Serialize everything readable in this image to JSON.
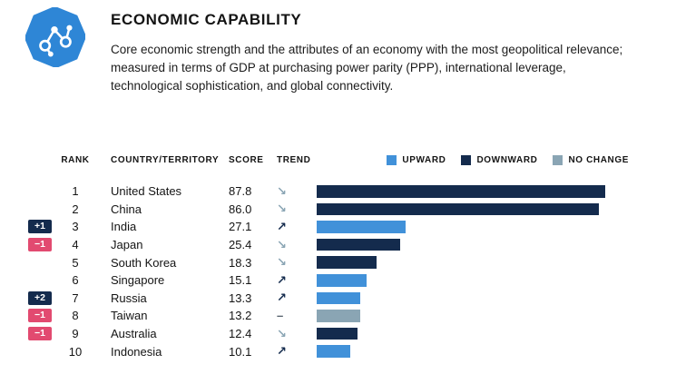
{
  "header": {
    "title": "ECONOMIC CAPABILITY",
    "description": "Core economic strength and the attributes of an economy with the most geopolitical relevance; measured in terms of GDP at purchasing power parity (PPP), international leverage, technological sophistication, and global connectivity.",
    "icon": "network-nodes-icon"
  },
  "table": {
    "columns": [
      "RANK",
      "COUNTRY/TERRITORY",
      "SCORE",
      "TREND"
    ],
    "legend": [
      {
        "label": "UPWARD",
        "key": "upward"
      },
      {
        "label": "DOWNWARD",
        "key": "downward"
      },
      {
        "label": "NO CHANGE",
        "key": "no_change"
      }
    ]
  },
  "colors": {
    "upward": "#4191d9",
    "downward": "#142b4d",
    "no_change": "#8aa5b4",
    "badge_positive": "#142b4d",
    "badge_negative": "#e24a70",
    "icon_blue": "#2e86d6",
    "trend_up": "#142b4d",
    "trend_down": "#8aa5b4",
    "trend_none": "#55616c"
  },
  "trend_symbols": {
    "up": "↗",
    "down": "↘",
    "none": "–"
  },
  "chart_data": {
    "type": "bar",
    "orientation": "horizontal",
    "title": "ECONOMIC CAPABILITY",
    "axis_max": 100,
    "grid": false,
    "legend_position": "top-right",
    "rows": [
      {
        "rank": "1",
        "change": "",
        "country": "United States",
        "score": "87.8",
        "trend": "down"
      },
      {
        "rank": "2",
        "change": "",
        "country": "China",
        "score": "86.0",
        "trend": "down"
      },
      {
        "rank": "3",
        "change": "+1",
        "country": "India",
        "score": "27.1",
        "trend": "up"
      },
      {
        "rank": "4",
        "change": "−1",
        "country": "Japan",
        "score": "25.4",
        "trend": "down"
      },
      {
        "rank": "5",
        "change": "",
        "country": "South Korea",
        "score": "18.3",
        "trend": "down"
      },
      {
        "rank": "6",
        "change": "",
        "country": "Singapore",
        "score": "15.1",
        "trend": "up"
      },
      {
        "rank": "7",
        "change": "+2",
        "country": "Russia",
        "score": "13.3",
        "trend": "up"
      },
      {
        "rank": "8",
        "change": "−1",
        "country": "Taiwan",
        "score": "13.2",
        "trend": "none"
      },
      {
        "rank": "9",
        "change": "−1",
        "country": "Australia",
        "score": "12.4",
        "trend": "down"
      },
      {
        "rank": "10",
        "change": "",
        "country": "Indonesia",
        "score": "10.1",
        "trend": "up"
      }
    ]
  }
}
